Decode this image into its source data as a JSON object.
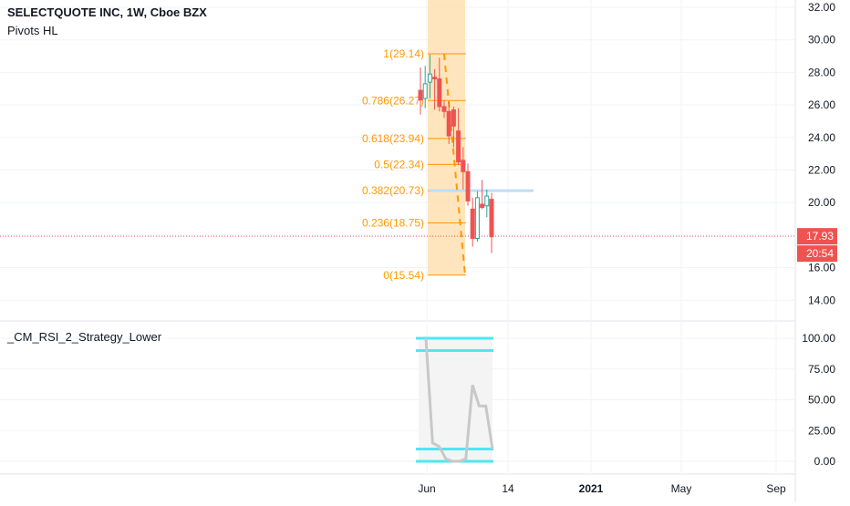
{
  "header": {
    "symbol_title": "SELECTQUOTE INC, 1W, Cboe BZX",
    "indicator_main": "Pivots HL",
    "indicator_lower": "_CM_RSI_2_Strategy_Lower"
  },
  "chart_data": [
    {
      "type": "candlestick",
      "title": "SELECTQUOTE INC, 1W, Cboe BZX",
      "ylim": [
        13.0,
        32.4
      ],
      "y_ticks": [
        "32.00",
        "30.00",
        "28.00",
        "26.00",
        "24.00",
        "22.00",
        "20.00",
        "18.00",
        "16.00",
        "14.00"
      ],
      "y_tick_values": [
        32,
        30,
        28,
        26,
        24,
        22,
        20,
        18,
        16,
        14
      ],
      "x_tick_labels": [
        "Jun",
        "14",
        "2021",
        "May",
        "Sep"
      ],
      "grid": true,
      "last_price_label": "17.93",
      "last_price": 17.93,
      "countdown_label": "20:54",
      "up_color": "#26a69a",
      "down_color": "#ef5350",
      "fib_color": "#ff9800",
      "fib_band_color": "#ffe0b2",
      "resistance_color": "#bbdefb",
      "candles": [
        {
          "o": 26.9,
          "h": 28.3,
          "l": 25.4,
          "c": 26.3
        },
        {
          "o": 26.4,
          "h": 28.4,
          "l": 25.8,
          "c": 27.3
        },
        {
          "o": 27.4,
          "h": 29.1,
          "l": 26.4,
          "c": 27.9
        },
        {
          "o": 27.7,
          "h": 28.2,
          "l": 25.7,
          "c": 27.6
        },
        {
          "o": 27.6,
          "h": 28.9,
          "l": 25.6,
          "c": 25.9
        },
        {
          "o": 25.9,
          "h": 26.3,
          "l": 25.2,
          "c": 25.6
        },
        {
          "o": 25.6,
          "h": 26.2,
          "l": 23.6,
          "c": 24.1
        },
        {
          "o": 25.7,
          "h": 25.9,
          "l": 23.4,
          "c": 24.7
        },
        {
          "o": 24.4,
          "h": 25.8,
          "l": 22.3,
          "c": 22.5
        },
        {
          "o": 22.6,
          "h": 23.4,
          "l": 20.8,
          "c": 21.9
        },
        {
          "o": 21.9,
          "h": 22.4,
          "l": 19.8,
          "c": 20.1
        },
        {
          "o": 19.6,
          "h": 20.3,
          "l": 17.3,
          "c": 17.8
        },
        {
          "o": 17.8,
          "h": 20.7,
          "l": 17.6,
          "c": 20.3
        },
        {
          "o": 19.9,
          "h": 21.4,
          "l": 19.6,
          "c": 19.7
        },
        {
          "o": 19.8,
          "h": 20.8,
          "l": 19.1,
          "c": 20.4
        },
        {
          "o": 20.2,
          "h": 20.6,
          "l": 16.9,
          "c": 17.9
        }
      ],
      "fib_levels": [
        {
          "label": "1(29.14)",
          "value": 29.14
        },
        {
          "label": "0.786(26.27)",
          "value": 26.27
        },
        {
          "label": "0.618(23.94)",
          "value": 23.94
        },
        {
          "label": "0.5(22.34)",
          "value": 22.34
        },
        {
          "label": "0.382(20.73)",
          "value": 20.73
        },
        {
          "label": "0.236(18.75)",
          "value": 18.75
        },
        {
          "label": "0(15.54)",
          "value": 15.54
        }
      ],
      "zigzag": [
        29.14,
        15.54
      ],
      "resistance_level": 20.73
    },
    {
      "type": "line",
      "title": "_CM_RSI_2_Strategy_Lower",
      "ylim": [
        -4,
        108
      ],
      "y_ticks": [
        "100.00",
        "75.00",
        "50.00",
        "25.00",
        "0.00"
      ],
      "y_tick_values": [
        100,
        75,
        50,
        25,
        0
      ],
      "upper_bands": [
        100,
        90
      ],
      "lower_bands": [
        10,
        0
      ],
      "band_color": "#4de8f0",
      "line_color": "#c8c8c8",
      "rsi_points": [
        100,
        15,
        12,
        2,
        0,
        0,
        2,
        62,
        45,
        45,
        10
      ]
    }
  ]
}
